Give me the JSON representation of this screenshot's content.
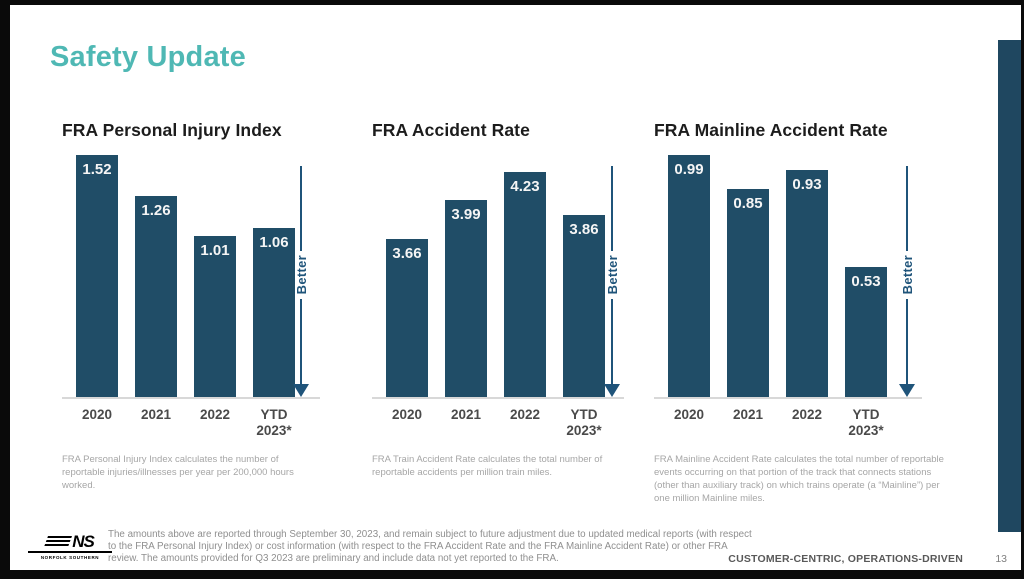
{
  "slide": {
    "title": "Safety Update",
    "colors": {
      "bar_navy": "#204D67",
      "accent_sidebar_navy": "#1F4760",
      "arrow_navy": "#1F547A",
      "title_teal": "#4FB8B4"
    },
    "footer": {
      "disclaimer": "The amounts above are reported through September 30, 2023, and remain subject to future adjustment due to updated medical reports (with respect to the FRA Personal Injury Index) or cost information (with respect to the FRA Accident Rate and the FRA Mainline Accident Rate) or other FRA review. The amounts provided for Q3 2023 are preliminary and include data not yet reported to the FRA.",
      "tagline": "CUSTOMER-CENTRIC, OPERATIONS-DRIVEN",
      "page_number": "13",
      "logo_text": "NS",
      "logo_subtext": "NORFOLK SOUTHERN"
    }
  },
  "chart_data": [
    {
      "id": "fra-personal-injury-index",
      "type": "bar",
      "title": "FRA Personal Injury Index",
      "categories": [
        "2020",
        "2021",
        "2022",
        "YTD 2023*"
      ],
      "values": [
        1.52,
        1.26,
        1.01,
        1.06
      ],
      "ylim": [
        0,
        1.52
      ],
      "grid": false,
      "value_labels": "inside-top",
      "better_label": "Better",
      "footnote": "FRA Personal Injury Index calculates the number of reportable injuries/illnesses per year per 200,000 hours worked."
    },
    {
      "id": "fra-accident-rate",
      "type": "bar",
      "title": "FRA Accident Rate",
      "categories": [
        "2020",
        "2021",
        "2022",
        "YTD 2023*"
      ],
      "values": [
        3.66,
        3.99,
        4.23,
        3.86
      ],
      "ylim": [
        2.3,
        4.38
      ],
      "grid": false,
      "value_labels": "inside-top",
      "better_label": "Better",
      "footnote": "FRA Train Accident Rate calculates the total number of reportable accidents per million train miles."
    },
    {
      "id": "fra-mainline-accident-rate",
      "type": "bar",
      "title": "FRA Mainline Accident Rate",
      "categories": [
        "2020",
        "2021",
        "2022",
        "YTD 2023*"
      ],
      "values": [
        0.99,
        0.85,
        0.93,
        0.53
      ],
      "ylim": [
        0,
        0.99
      ],
      "grid": false,
      "value_labels": "inside-top",
      "better_label": "Better",
      "footnote": "FRA Mainline Accident Rate calculates the total number of reportable events occurring on that portion of the track that connects stations (other than auxiliary track) on which trains operate (a “Mainline”) per one million Mainline miles."
    }
  ]
}
